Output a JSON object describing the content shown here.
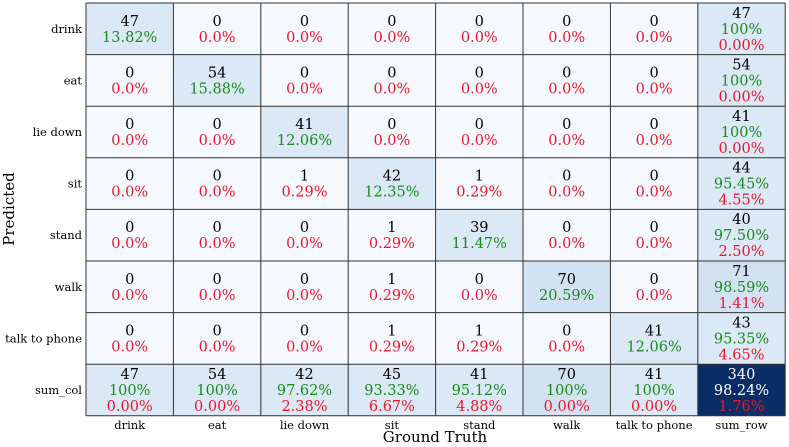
{
  "chart_data": {
    "type": "heatmap",
    "xlabel": "Ground Truth",
    "ylabel": "Predicted",
    "x_tick_labels": [
      "drink",
      "eat",
      "lie down",
      "sit",
      "stand",
      "walk",
      "talk to phone",
      "sum_row"
    ],
    "y_tick_labels": [
      "drink",
      "eat",
      "lie down",
      "sit",
      "stand",
      "walk",
      "talk to phone",
      "sum_col"
    ],
    "colors": {
      "count_text": "#000000",
      "correct_pct": "#1a8a1a",
      "error_pct": "#e8182c",
      "highlight_text": "#ffffff",
      "cell_empty": "#f5f8fd",
      "cell_diag": "#dbe8f5",
      "cell_total": "#0b2d66",
      "grid": "#333333"
    },
    "cells": [
      [
        {
          "n": "47",
          "a": "13.82%"
        },
        {
          "n": "0",
          "a": "0.0%"
        },
        {
          "n": "0",
          "a": "0.0%"
        },
        {
          "n": "0",
          "a": "0.0%"
        },
        {
          "n": "0",
          "a": "0.0%"
        },
        {
          "n": "0",
          "a": "0.0%"
        },
        {
          "n": "0",
          "a": "0.0%"
        },
        {
          "n": "47",
          "a": "100%",
          "b": "0.00%"
        }
      ],
      [
        {
          "n": "0",
          "a": "0.0%"
        },
        {
          "n": "54",
          "a": "15.88%"
        },
        {
          "n": "0",
          "a": "0.0%"
        },
        {
          "n": "0",
          "a": "0.0%"
        },
        {
          "n": "0",
          "a": "0.0%"
        },
        {
          "n": "0",
          "a": "0.0%"
        },
        {
          "n": "0",
          "a": "0.0%"
        },
        {
          "n": "54",
          "a": "100%",
          "b": "0.00%"
        }
      ],
      [
        {
          "n": "0",
          "a": "0.0%"
        },
        {
          "n": "0",
          "a": "0.0%"
        },
        {
          "n": "41",
          "a": "12.06%"
        },
        {
          "n": "0",
          "a": "0.0%"
        },
        {
          "n": "0",
          "a": "0.0%"
        },
        {
          "n": "0",
          "a": "0.0%"
        },
        {
          "n": "0",
          "a": "0.0%"
        },
        {
          "n": "41",
          "a": "100%",
          "b": "0.00%"
        }
      ],
      [
        {
          "n": "0",
          "a": "0.0%"
        },
        {
          "n": "0",
          "a": "0.0%"
        },
        {
          "n": "1",
          "a": "0.29%"
        },
        {
          "n": "42",
          "a": "12.35%"
        },
        {
          "n": "1",
          "a": "0.29%"
        },
        {
          "n": "0",
          "a": "0.0%"
        },
        {
          "n": "0",
          "a": "0.0%"
        },
        {
          "n": "44",
          "a": "95.45%",
          "b": "4.55%"
        }
      ],
      [
        {
          "n": "0",
          "a": "0.0%"
        },
        {
          "n": "0",
          "a": "0.0%"
        },
        {
          "n": "0",
          "a": "0.0%"
        },
        {
          "n": "1",
          "a": "0.29%"
        },
        {
          "n": "39",
          "a": "11.47%"
        },
        {
          "n": "0",
          "a": "0.0%"
        },
        {
          "n": "0",
          "a": "0.0%"
        },
        {
          "n": "40",
          "a": "97.50%",
          "b": "2.50%"
        }
      ],
      [
        {
          "n": "0",
          "a": "0.0%"
        },
        {
          "n": "0",
          "a": "0.0%"
        },
        {
          "n": "0",
          "a": "0.0%"
        },
        {
          "n": "1",
          "a": "0.29%"
        },
        {
          "n": "0",
          "a": "0.0%"
        },
        {
          "n": "70",
          "a": "20.59%"
        },
        {
          "n": "0",
          "a": "0.0%"
        },
        {
          "n": "71",
          "a": "98.59%",
          "b": "1.41%"
        }
      ],
      [
        {
          "n": "0",
          "a": "0.0%"
        },
        {
          "n": "0",
          "a": "0.0%"
        },
        {
          "n": "0",
          "a": "0.0%"
        },
        {
          "n": "1",
          "a": "0.29%"
        },
        {
          "n": "1",
          "a": "0.29%"
        },
        {
          "n": "0",
          "a": "0.0%"
        },
        {
          "n": "41",
          "a": "12.06%"
        },
        {
          "n": "43",
          "a": "95.35%",
          "b": "4.65%"
        }
      ],
      [
        {
          "n": "47",
          "a": "100%",
          "b": "0.00%"
        },
        {
          "n": "54",
          "a": "100%",
          "b": "0.00%"
        },
        {
          "n": "42",
          "a": "97.62%",
          "b": "2.38%"
        },
        {
          "n": "45",
          "a": "93.33%",
          "b": "6.67%"
        },
        {
          "n": "41",
          "a": "95.12%",
          "b": "4.88%"
        },
        {
          "n": "70",
          "a": "100%",
          "b": "0.00%"
        },
        {
          "n": "41",
          "a": "100%",
          "b": "0.00%"
        },
        {
          "n": "340",
          "a": "98.24%",
          "b": "1.76%"
        }
      ]
    ]
  }
}
